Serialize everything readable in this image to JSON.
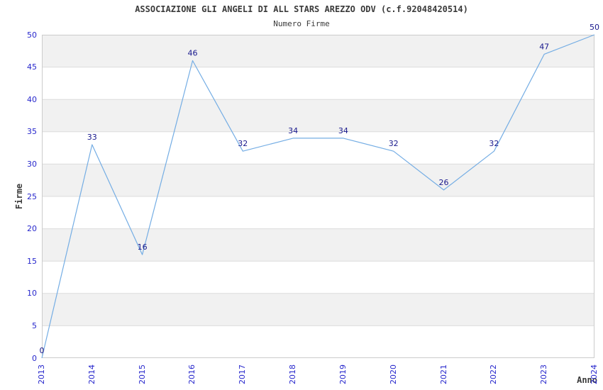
{
  "chart_data": {
    "type": "line",
    "title": "ASSOCIAZIONE GLI ANGELI DI ALL STARS AREZZO ODV (c.f.92048420514)",
    "subtitle": "Numero Firme",
    "xlabel": "Anno",
    "ylabel": "Firme",
    "x": [
      2013,
      2014,
      2015,
      2016,
      2017,
      2018,
      2019,
      2020,
      2021,
      2022,
      2023,
      2024
    ],
    "series": [
      {
        "name": "Numero Firme",
        "values": [
          0,
          33,
          16,
          46,
          32,
          34,
          34,
          32,
          26,
          32,
          47,
          50
        ]
      }
    ],
    "ylim": [
      0,
      50
    ],
    "ytick_step": 5,
    "yticks": [
      0,
      5,
      10,
      15,
      20,
      25,
      30,
      35,
      40,
      45,
      50
    ],
    "grid": "horizontal-bands",
    "legend_position": "none",
    "data_labels_visible": true,
    "colors": {
      "line": "#74ade4",
      "tick_label": "#2727cc",
      "data_label": "#17178c",
      "band_gray": "#f1f1f1",
      "band_white": "#ffffff",
      "gridline": "#dcdcdc",
      "plot_border": "#cccccc",
      "text": "#3a3a3a",
      "background": "#ffffff"
    }
  }
}
